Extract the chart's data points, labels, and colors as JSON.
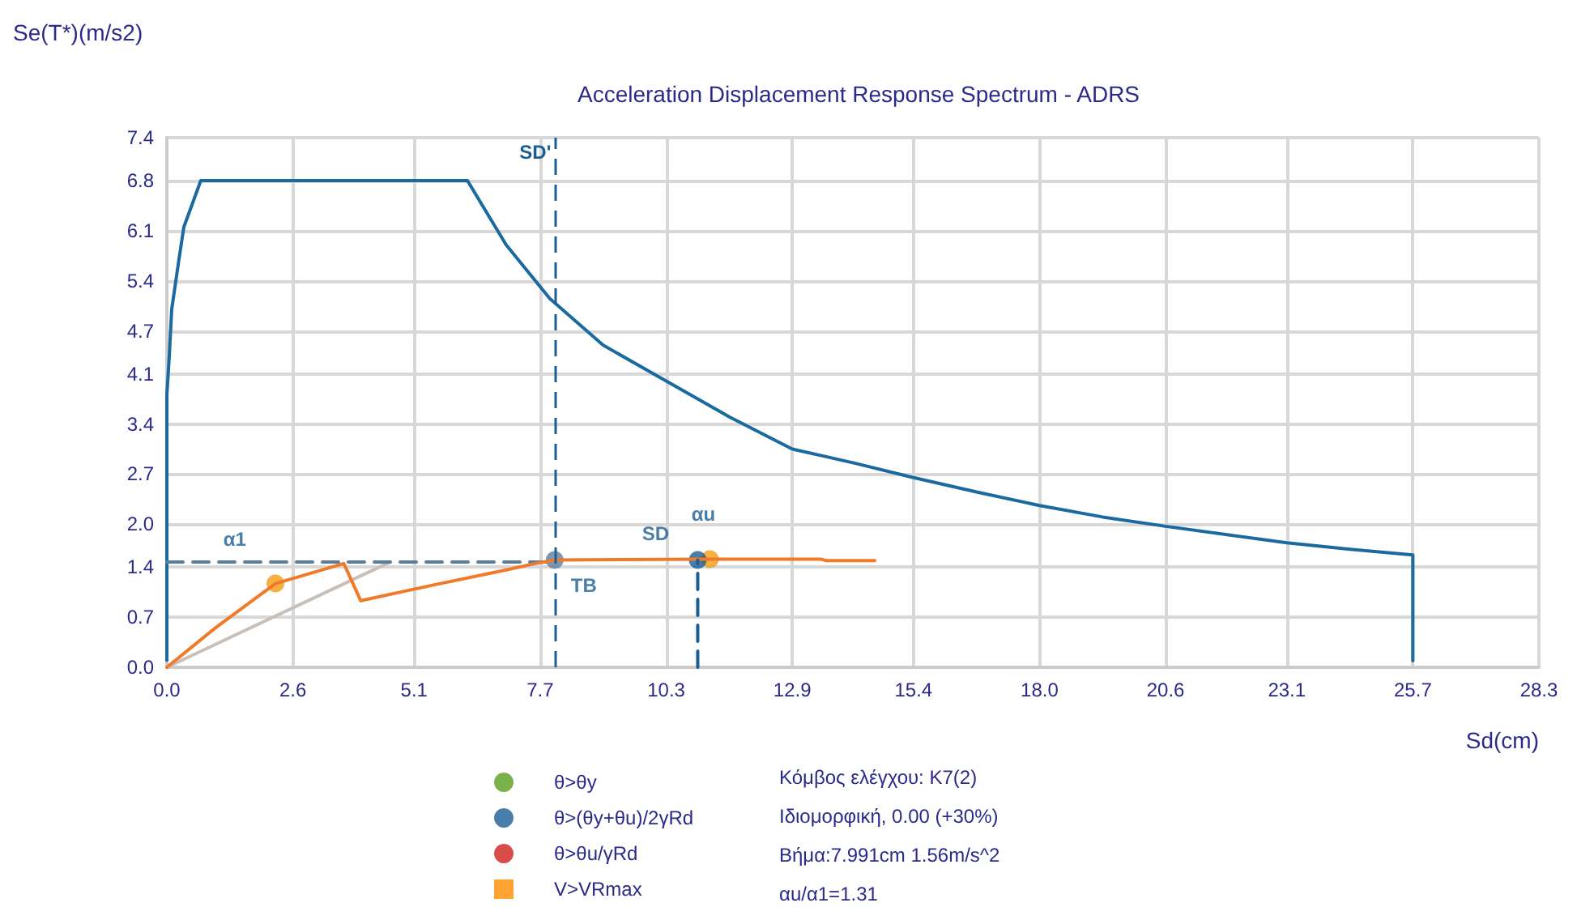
{
  "chart_data": {
    "type": "line",
    "title": "Acceleration Displacement Response Spectrum - ADRS",
    "xlabel": "Sd(cm)",
    "ylabel": "Se(T*)(m/s2)",
    "xlim": [
      0,
      28.3
    ],
    "xticks": [
      {
        "value": 0,
        "label": "0.0"
      },
      2.6,
      5.1,
      7.7,
      10.3,
      12.9,
      15.4,
      {
        "value": 18,
        "label": "18.0"
      },
      20.6,
      23.1,
      25.7,
      28.3
    ],
    "ylim": [
      0,
      7.4
    ],
    "yticks": [
      {
        "value": 0,
        "label": "0.0"
      },
      0.7,
      1.4,
      {
        "value": 2,
        "label": "2.0"
      },
      2.7,
      3.4,
      4.1,
      4.7,
      5.4,
      6.1,
      6.8,
      7.4
    ],
    "grid": true,
    "legend": "bottom",
    "series": [
      {
        "color": "#1a6aa0",
        "marker": "none",
        "line_style": "solid",
        "x": [
          0,
          0,
          0.05,
          0.1,
          0.25,
          0.35,
          0.7,
          6.2,
          7.0,
          7.9,
          9.0,
          10.3,
          11.6,
          12.9,
          14.2,
          15.4,
          16.7,
          18.0,
          19.3,
          20.6,
          21.9,
          23.1,
          24.4,
          25.7,
          25.7
        ],
        "values": [
          0.1,
          3.8,
          4.35,
          5.0,
          5.7,
          6.15,
          6.8,
          6.8,
          5.9,
          5.15,
          4.5,
          4.0,
          3.5,
          3.05,
          2.85,
          2.65,
          2.45,
          2.26,
          2.1,
          1.97,
          1.85,
          1.74,
          1.65,
          1.57,
          0.09
        ]
      },
      {
        "color": "#c8c0b8",
        "marker": "none",
        "line_style": "solid",
        "x": [
          0,
          4.6
        ],
        "values": [
          0,
          1.47
        ]
      },
      {
        "color": "#5b7d9a",
        "marker": "none",
        "line_style": "dashed",
        "x": [
          0,
          8.0
        ],
        "values": [
          1.47,
          1.47
        ]
      },
      {
        "color": "#f07a2a",
        "marker": "none",
        "line_style": "solid",
        "x": [
          0,
          1.0,
          2.24,
          3.65,
          4.0,
          5.5,
          7.0,
          7.6,
          8.0,
          11.2,
          13.5,
          13.6,
          14.6
        ],
        "values": [
          0,
          0.55,
          1.17,
          1.45,
          0.93,
          1.15,
          1.36,
          1.45,
          1.5,
          1.51,
          1.51,
          1.49,
          1.49
        ]
      },
      {
        "color": "#1a5e94",
        "marker": "none",
        "line_style": "dashed",
        "x": [
          10.95,
          10.95
        ],
        "values": [
          0,
          1.5
        ]
      },
      {
        "type": "scatter",
        "color": "#f39c12",
        "marker": "circle",
        "x": [
          2.24,
          11.2
        ],
        "values": [
          1.17,
          1.51
        ]
      },
      {
        "type": "scatter",
        "color": "#1a5e94",
        "marker": "circle",
        "x": [
          10.95
        ],
        "values": [
          1.5
        ]
      },
      {
        "type": "scatter",
        "color": "#5b7fa0",
        "marker": "circle",
        "x": [
          8.0
        ],
        "values": [
          1.5
        ]
      },
      {
        "type": "scatter",
        "name": "θ>θy",
        "color": "#5a9e1e",
        "marker": "circle"
      },
      {
        "type": "scatter",
        "name": "θ>(θy+θu)/2γRd",
        "color": "#1a5e94",
        "marker": "circle"
      },
      {
        "type": "scatter",
        "name": "θ>θu/γRd",
        "color": "#d0201a",
        "marker": "circle"
      },
      {
        "type": "scatter",
        "name": "V>VRmax",
        "color": "#ff8c00",
        "marker": "square"
      }
    ],
    "ref_lines": [
      {
        "axis": "x",
        "value": 8.0,
        "label": "SD'",
        "color": "#1a5e94",
        "line_style": "dashed"
      }
    ],
    "annotations": [
      {
        "text": "α1",
        "x": 1.4,
        "y": 1.47
      },
      {
        "text": "αu",
        "x": 11.2,
        "y": 1.51
      },
      {
        "text": "SD",
        "x": 10.95,
        "y": 1.5
      },
      {
        "text": "TB",
        "x": 8.0,
        "y": 1.5
      },
      "Κόμβος ελέγχου: K7(2)",
      "Ιδιομορφική, 0.00 (+30%)",
      "Βήμα:7.991cm 1.56m/s^2",
      "αu/α1=1.31"
    ]
  }
}
